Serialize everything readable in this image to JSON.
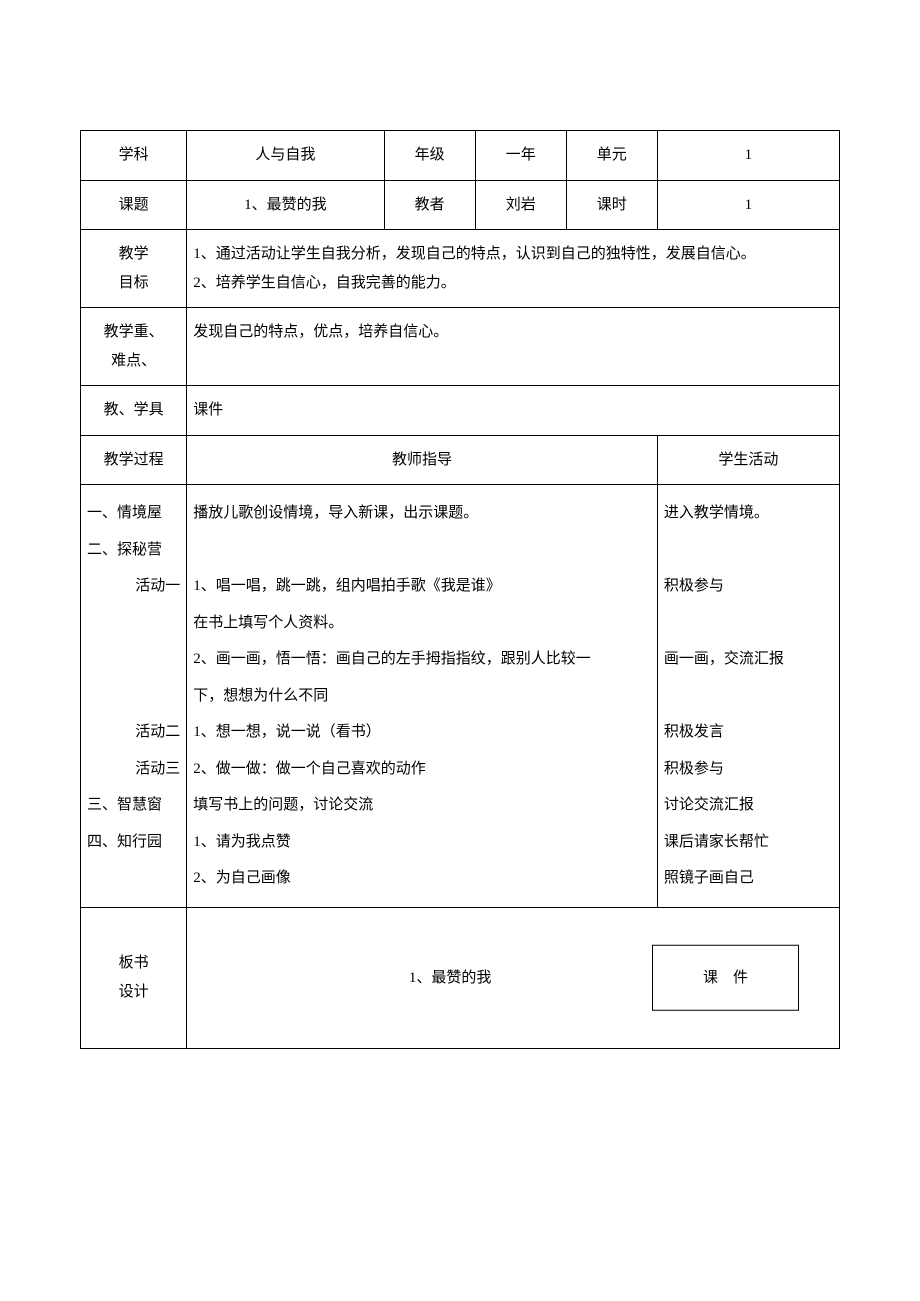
{
  "header": {
    "labels": {
      "subject": "学科",
      "grade": "年级",
      "unit": "单元",
      "topic": "课题",
      "teacher": "教者",
      "period": "课时",
      "objectives": "教学\n目标",
      "keypoints": "教学重、\n难点、",
      "tools": "教、学具",
      "process": "教学过程",
      "teacher_guide": "教师指导",
      "student_activity": "学生活动",
      "board": "板书\n设计"
    },
    "values": {
      "subject": "人与自我",
      "grade": "一年",
      "unit": "1",
      "topic": "1、最赞的我",
      "teacher": "刘岩",
      "period": "1"
    }
  },
  "objectives": "1、通过活动让学生自我分析，发现自己的特点，认识到自己的独特性，发展自信心。\n2、培养学生自信心，自我完善的能力。",
  "keypoints": "发现自己的特点，优点，培养自信心。",
  "tools": "课件",
  "process": {
    "left_lines": [
      {
        "t": "一、情境屋",
        "indent": false
      },
      {
        "t": "二、探秘营",
        "indent": false
      },
      {
        "t": "活动一",
        "indent": true
      },
      {
        "t": "",
        "indent": false
      },
      {
        "t": "",
        "indent": false
      },
      {
        "t": "",
        "indent": false
      },
      {
        "t": "活动二",
        "indent": true
      },
      {
        "t": "活动三",
        "indent": true
      },
      {
        "t": "三、智慧窗",
        "indent": false
      },
      {
        "t": "四、知行园",
        "indent": false
      },
      {
        "t": "",
        "indent": false
      }
    ],
    "teacher_lines": [
      "播放儿歌创设情境，导入新课，出示课题。",
      "",
      "1、唱一唱，跳一跳，组内唱拍手歌《我是谁》",
      "在书上填写个人资料。",
      "2、画一画，悟一悟：画自己的左手拇指指纹，跟别人比较一",
      "下，想想为什么不同",
      "1、想一想，说一说（看书）",
      "2、做一做：做一个自己喜欢的动作",
      "填写书上的问题，讨论交流",
      "1、请为我点赞",
      "2、为自己画像"
    ],
    "student_lines": [
      "进入教学情境。",
      "",
      "积极参与",
      "",
      "画一画，交流汇报",
      "",
      "积极发言",
      "积极参与",
      "讨论交流汇报",
      "课后请家长帮忙",
      "照镜子画自己"
    ]
  },
  "board": {
    "title": "1、最赞的我",
    "box": "课　件"
  },
  "colors": {
    "border": "#000000",
    "text": "#000000",
    "background": "#ffffff"
  }
}
